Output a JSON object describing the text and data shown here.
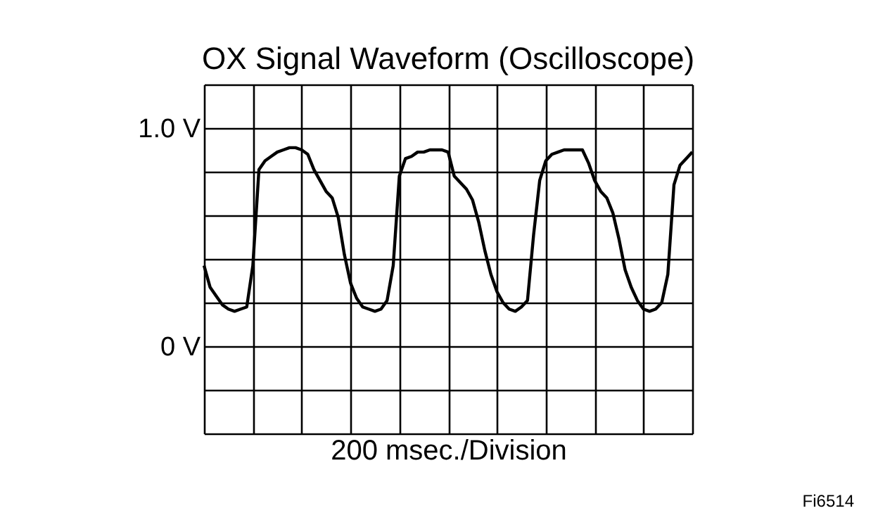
{
  "chart_data": {
    "type": "line",
    "title": "OX Signal Waveform (Oscilloscope)",
    "xlabel": "200 msec./Division",
    "annotations": [
      "Fi6514"
    ],
    "categories": [
      null,
      null,
      null,
      null,
      null,
      null,
      null,
      null,
      null,
      null,
      null,
      null,
      null,
      null,
      null,
      null,
      null,
      null,
      null,
      null,
      null,
      null,
      null,
      null,
      null,
      null,
      null,
      null,
      null,
      null,
      null,
      null,
      null,
      null,
      null,
      null,
      null,
      null,
      null,
      null,
      null,
      null,
      null,
      null,
      null,
      null,
      null,
      null,
      null,
      null,
      null,
      null,
      null,
      null,
      null,
      null,
      null,
      null,
      null,
      null,
      null,
      null,
      null,
      null,
      null,
      null,
      null,
      null,
      null,
      null,
      null,
      null,
      null,
      null,
      null,
      null,
      null,
      null,
      null,
      null,
      null
    ],
    "series": [
      {
        "color": "#000000",
        "values": [
          0.37,
          0.27,
          0.23,
          0.19,
          0.17,
          0.16,
          0.17,
          0.18,
          0.37,
          0.81,
          0.85,
          0.87,
          0.89,
          0.9,
          0.91,
          0.91,
          0.9,
          0.88,
          0.81,
          0.76,
          0.71,
          0.68,
          0.59,
          0.42,
          0.29,
          0.22,
          0.18,
          0.17,
          0.16,
          0.17,
          0.21,
          0.37,
          0.78,
          0.86,
          0.87,
          0.89,
          0.89,
          0.9,
          0.9,
          0.9,
          0.89,
          0.78,
          0.75,
          0.72,
          0.67,
          0.57,
          0.44,
          0.33,
          0.25,
          0.2,
          0.17,
          0.16,
          0.18,
          0.21,
          0.51,
          0.76,
          0.85,
          0.88,
          0.89,
          0.9,
          0.9,
          0.9,
          0.9,
          0.84,
          0.76,
          0.71,
          0.68,
          0.61,
          0.49,
          0.35,
          0.27,
          0.21,
          0.17,
          0.16,
          0.17,
          0.2,
          0.33,
          0.74,
          0.83,
          0.86,
          0.89
        ]
      }
    ],
    "ylim": [
      -0.4,
      1.2
    ],
    "yticks": [
      {
        "value": -0.4,
        "label": null
      },
      {
        "value": -0.2,
        "label": null
      },
      {
        "value": 0,
        "label": "0 V"
      },
      {
        "value": 0.2,
        "label": null
      },
      {
        "value": 0.4,
        "label": null
      },
      {
        "value": 0.6,
        "label": null
      },
      {
        "value": 0.8,
        "label": null
      },
      {
        "value": 1.0,
        "label": "1.0 V"
      },
      {
        "value": 1.2,
        "label": null
      }
    ],
    "tick_labels": "y",
    "grid": true,
    "marker": "none",
    "line_style": "solid"
  }
}
